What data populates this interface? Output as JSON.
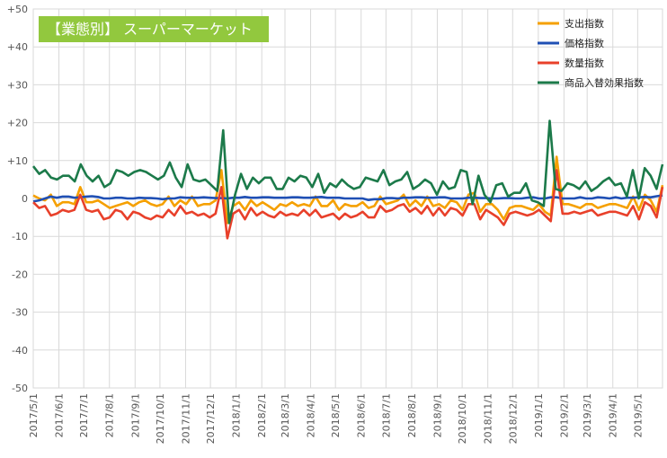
{
  "chart_data": {
    "type": "line",
    "title": "【業態別】 スーパーマーケット",
    "title_bg": "#92c83e",
    "xlabel": "",
    "ylabel": "",
    "ylim": [
      -50,
      50
    ],
    "y_ticks": [
      {
        "value": 50,
        "label": "+50"
      },
      {
        "value": 40,
        "label": "+40"
      },
      {
        "value": 30,
        "label": "+30"
      },
      {
        "value": 20,
        "label": "+20"
      },
      {
        "value": 10,
        "label": "+10"
      },
      {
        "value": 0,
        "label": "0"
      },
      {
        "value": -10,
        "label": "-10"
      },
      {
        "value": -20,
        "label": "-20"
      },
      {
        "value": -30,
        "label": "-30"
      },
      {
        "value": -40,
        "label": "-40"
      },
      {
        "value": -50,
        "label": "-50"
      }
    ],
    "x_range": [
      "2017-05-01",
      "2019-05-31"
    ],
    "x_tick_labels": [
      "2017/5/1",
      "2017/6/1",
      "2017/7/1",
      "2017/8/1",
      "2017/9/1",
      "2017/10/1",
      "2017/11/1",
      "2017/12/1",
      "2018/1/1",
      "2018/2/1",
      "2018/3/1",
      "2018/4/1",
      "2018/5/1",
      "2018/6/1",
      "2018/7/1",
      "2018/8/1",
      "2018/9/1",
      "2018/10/1",
      "2018/11/1",
      "2018/12/1",
      "2019/1/1",
      "2019/2/1",
      "2019/3/1",
      "2019/4/1",
      "2019/5/1"
    ],
    "grid": true,
    "legend_position": "top-right",
    "series": [
      {
        "name": "支出指数",
        "color": "#f5a000",
        "values": [
          0.8,
          0.0,
          -0.5,
          1.0,
          -2.0,
          -1.0,
          -1.0,
          -1.5,
          3.0,
          -1.0,
          -1.0,
          -0.5,
          -1.5,
          -2.5,
          -2.0,
          -1.5,
          -1.0,
          -2.0,
          -1.0,
          -0.5,
          -1.5,
          -2.0,
          -1.5,
          0.5,
          -2.0,
          -0.5,
          -1.5,
          0.5,
          -2.0,
          -1.5,
          -1.5,
          -0.5,
          7.5,
          -6.5,
          -2.0,
          -1.0,
          -3.0,
          -0.5,
          -2.0,
          -1.0,
          -2.0,
          -3.0,
          -1.5,
          -2.0,
          -1.0,
          -2.0,
          -1.5,
          -2.0,
          0.5,
          -2.0,
          -2.0,
          -0.5,
          -3.0,
          -1.5,
          -2.0,
          -2.0,
          -1.0,
          -2.5,
          -2.0,
          0.5,
          -1.5,
          -1.0,
          -0.5,
          1.0,
          -2.0,
          -0.5,
          -2.0,
          0.5,
          -2.0,
          -1.5,
          -2.5,
          -0.5,
          -1.0,
          -3.0,
          1.0,
          1.5,
          -3.5,
          -1.5,
          -1.5,
          -3.0,
          -5.5,
          -2.5,
          -2.0,
          -2.0,
          -2.5,
          -3.0,
          -1.5,
          -3.5,
          -4.5,
          11.0,
          -1.5,
          -1.5,
          -2.0,
          -2.5,
          -1.5,
          -1.5,
          -2.5,
          -2.0,
          -1.5,
          -1.5,
          -2.0,
          -2.5,
          0.5,
          -3.0,
          1.0,
          -0.5,
          -3.5,
          3.5
        ]
      },
      {
        "name": "価格指数",
        "color": "#1f4fb4",
        "values": [
          -0.8,
          -0.5,
          0.0,
          0.5,
          0.2,
          0.5,
          0.5,
          0.2,
          0.3,
          0.5,
          0.6,
          0.4,
          0.0,
          0.0,
          0.2,
          0.2,
          0.0,
          0.0,
          0.2,
          0.1,
          0.1,
          0.0,
          -0.2,
          0.0,
          0.0,
          0.3,
          0.2,
          0.2,
          0.2,
          0.3,
          0.2,
          0.1,
          0.1,
          0.0,
          0.2,
          0.2,
          0.4,
          0.2,
          0.2,
          0.3,
          0.3,
          0.2,
          0.2,
          0.2,
          0.3,
          0.3,
          0.2,
          0.2,
          0.3,
          0.4,
          0.2,
          0.2,
          0.2,
          0.0,
          0.0,
          0.0,
          0.0,
          -0.4,
          -0.2,
          -0.2,
          0.1,
          0.1,
          0.0,
          0.2,
          0.2,
          0.3,
          0.3,
          0.2,
          0.2,
          0.3,
          0.3,
          0.0,
          0.0,
          0.0,
          0.2,
          0.2,
          0.1,
          0.1,
          0.0,
          0.0,
          0.1,
          0.1,
          0.0,
          0.0,
          0.2,
          0.3,
          0.0,
          0.0,
          0.3,
          0.3,
          0.0,
          0.0,
          0.0,
          0.3,
          0.0,
          0.0,
          0.3,
          0.2,
          0.0,
          0.3,
          0.0,
          0.2,
          0.2,
          0.3,
          0.4,
          0.3,
          0.6,
          0.8
        ]
      },
      {
        "name": "数量指数",
        "color": "#e8402a",
        "values": [
          -1.0,
          -2.5,
          -2.0,
          -4.5,
          -4.0,
          -3.0,
          -3.5,
          -3.0,
          1.0,
          -3.0,
          -3.5,
          -3.0,
          -5.5,
          -5.0,
          -3.0,
          -3.5,
          -5.5,
          -3.5,
          -4.0,
          -5.0,
          -5.5,
          -4.5,
          -5.0,
          -3.0,
          -4.5,
          -2.0,
          -4.0,
          -3.5,
          -4.5,
          -4.0,
          -5.0,
          -4.0,
          3.0,
          -10.5,
          -4.0,
          -3.0,
          -5.5,
          -2.5,
          -4.5,
          -3.5,
          -4.5,
          -5.0,
          -3.5,
          -4.5,
          -4.0,
          -4.5,
          -3.0,
          -4.5,
          -3.0,
          -5.0,
          -4.5,
          -4.0,
          -5.5,
          -4.0,
          -5.0,
          -4.5,
          -3.5,
          -5.0,
          -5.0,
          -2.0,
          -3.5,
          -3.0,
          -2.0,
          -1.5,
          -3.5,
          -2.5,
          -4.0,
          -2.0,
          -4.5,
          -2.5,
          -4.5,
          -2.5,
          -3.0,
          -4.5,
          -1.5,
          -1.5,
          -5.5,
          -3.0,
          -4.0,
          -5.0,
          -7.0,
          -4.0,
          -3.5,
          -4.0,
          -4.5,
          -4.0,
          -3.0,
          -4.5,
          -6.0,
          7.5,
          -4.0,
          -4.0,
          -3.5,
          -4.0,
          -3.5,
          -3.0,
          -4.5,
          -4.0,
          -3.5,
          -3.5,
          -4.0,
          -4.5,
          -2.0,
          -5.5,
          -1.0,
          -2.0,
          -5.0,
          3.0
        ]
      },
      {
        "name": "商品入替効果指数",
        "color": "#1c7a4a",
        "values": [
          8.5,
          6.5,
          7.5,
          5.5,
          5.0,
          6.0,
          6.0,
          4.5,
          9.0,
          6.0,
          4.5,
          6.0,
          3.0,
          4.0,
          7.5,
          7.0,
          6.0,
          7.0,
          7.5,
          7.0,
          6.0,
          5.0,
          6.0,
          9.5,
          5.5,
          3.0,
          9.0,
          5.0,
          4.5,
          5.0,
          3.5,
          2.0,
          18.0,
          -6.5,
          1.0,
          6.5,
          2.5,
          5.5,
          4.0,
          5.5,
          5.5,
          2.5,
          2.5,
          5.5,
          4.5,
          6.0,
          5.5,
          3.0,
          6.5,
          1.5,
          4.0,
          3.0,
          5.0,
          3.5,
          2.5,
          3.0,
          5.5,
          5.0,
          4.5,
          7.5,
          3.5,
          4.5,
          5.0,
          7.0,
          2.5,
          3.5,
          5.0,
          4.0,
          1.0,
          4.5,
          2.5,
          3.0,
          7.5,
          7.0,
          -1.5,
          6.0,
          1.0,
          -1.0,
          3.5,
          4.0,
          0.5,
          1.5,
          1.5,
          4.0,
          -0.5,
          -1.0,
          -2.0,
          20.5,
          2.5,
          2.0,
          4.0,
          3.5,
          2.5,
          4.5,
          2.0,
          3.0,
          4.5,
          5.5,
          3.5,
          4.0,
          0.5,
          7.5,
          0.0,
          8.0,
          6.0,
          2.5,
          9.0
        ]
      }
    ]
  }
}
